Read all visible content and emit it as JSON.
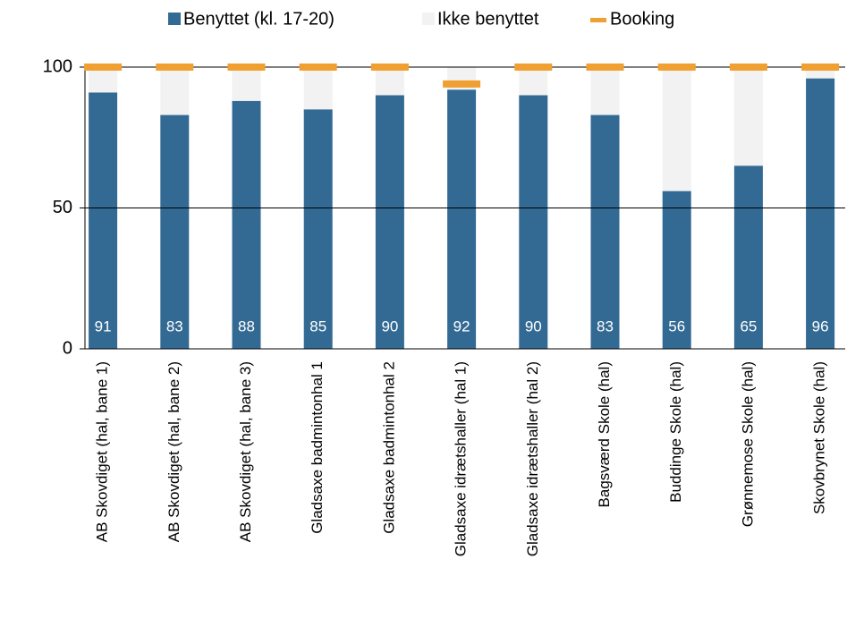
{
  "chart_data": {
    "type": "bar",
    "stacked": true,
    "categories": [
      "AB Skovdiget (hal, bane 1)",
      "AB Skovdiget (hal, bane 2)",
      "AB Skovdiget (hal, bane 3)",
      "Gladsaxe badmintonhal 1",
      "Gladsaxe badmintonhal 2",
      "Gladsaxe idrætshaller (hal 1)",
      "Gladsaxe idrætshaller (hal 2)",
      "Bagsværd Skole (hal)",
      "Buddinge Skole (hal)",
      "Grønnemose Skole (hal)",
      "Skovbrynet Skole (hal)"
    ],
    "series": [
      {
        "name": "Benyttet (kl. 17-20)",
        "color": "#336a94",
        "values": [
          91,
          83,
          88,
          85,
          90,
          92,
          90,
          83,
          56,
          65,
          96
        ],
        "data_labels": true
      },
      {
        "name": "Ikke benyttet",
        "color": "#f2f2f2",
        "values": [
          9,
          17,
          12,
          15,
          10,
          8,
          10,
          17,
          44,
          35,
          4
        ]
      },
      {
        "name": "Booking",
        "color": "#f0a030",
        "type": "marker",
        "values": [
          100,
          100,
          100,
          100,
          100,
          94,
          100,
          100,
          100,
          100,
          100
        ]
      }
    ],
    "ylim": [
      0,
      100
    ],
    "yticks": [
      0,
      50,
      100
    ],
    "grid": true,
    "legend": "top"
  }
}
